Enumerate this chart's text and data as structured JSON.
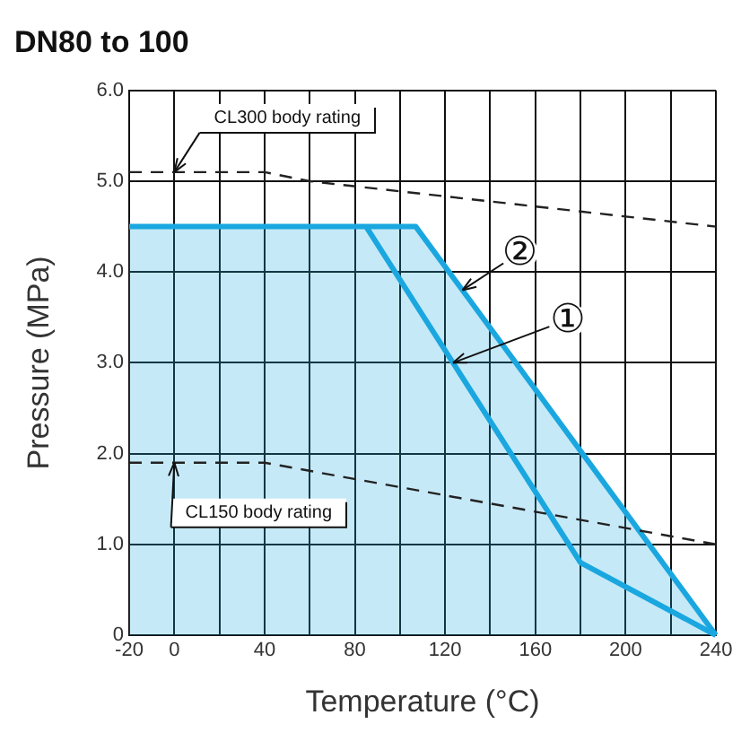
{
  "chart_data": {
    "type": "line",
    "title": "DN80 to 100",
    "xlabel": "Temperature (°C)",
    "ylabel": "Pressure (MPa)",
    "xlim": [
      -20,
      240
    ],
    "xticks": [
      -20,
      0,
      {
        "value": 20,
        "label": null
      },
      40,
      {
        "value": 60,
        "label": null
      },
      80,
      {
        "value": 100,
        "label": null
      },
      120,
      {
        "value": 140,
        "label": null
      },
      160,
      {
        "value": 180,
        "label": null
      },
      200,
      {
        "value": 220,
        "label": null
      },
      240
    ],
    "ylim": [
      0,
      6
    ],
    "yticks": [
      0,
      {
        "value": 1,
        "label": "1.0"
      },
      {
        "value": 2,
        "label": "2.0"
      },
      {
        "value": 3,
        "label": "3.0"
      },
      {
        "value": 4,
        "label": "4.0"
      },
      {
        "value": 5,
        "label": "5.0"
      },
      {
        "value": 6,
        "label": "6.0"
      }
    ],
    "grid": true,
    "marker": "none",
    "series": [
      {
        "type": "area",
        "color": "#1aa7e0",
        "x": [
          -20,
          107,
          240
        ],
        "values": [
          4.5,
          4.5,
          0
        ]
      },
      {
        "type": "line",
        "color": "#1aa7e0",
        "x": [
          85,
          180,
          240
        ],
        "values": [
          4.5,
          0.8,
          0
        ]
      },
      {
        "type": "line",
        "color": "#222222",
        "line_style": "dashed",
        "x": [
          -20,
          40,
          60,
          240
        ],
        "values": [
          5.1,
          5.1,
          5.0,
          4.5
        ]
      },
      {
        "type": "line",
        "color": "#222222",
        "line_style": "dashed",
        "x": [
          -20,
          40,
          240
        ],
        "values": [
          1.9,
          1.9,
          1.0
        ]
      }
    ],
    "annotations": [
      {
        "text": "CL300 body rating",
        "x": 0,
        "y": 5.1
      },
      {
        "text": "CL150 body rating",
        "x": 0,
        "y": 1.9
      },
      {
        "text": "①",
        "x": 123.5,
        "y": 3.0
      },
      {
        "text": "②",
        "x": 127.7,
        "y": 3.8
      }
    ]
  }
}
